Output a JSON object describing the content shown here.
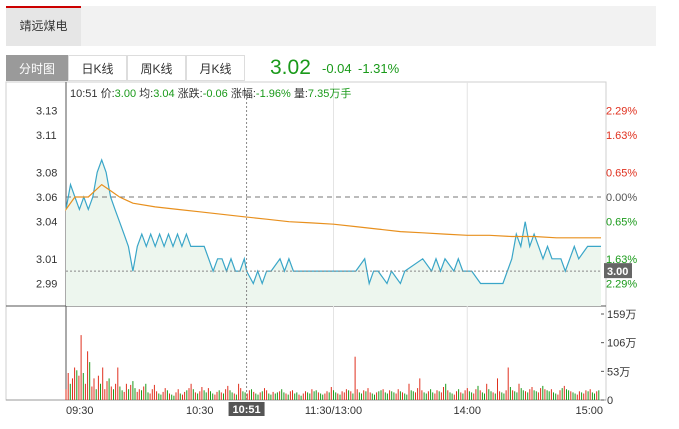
{
  "stock": {
    "name": "靖远煤电"
  },
  "toolbar": {
    "tabs": [
      {
        "label": "分时图",
        "active": true
      },
      {
        "label": "日K线",
        "active": false
      },
      {
        "label": "周K线",
        "active": false
      },
      {
        "label": "月K线",
        "active": false
      }
    ]
  },
  "quote": {
    "price": "3.02",
    "change": "-0.04",
    "change_pct": "-1.31%"
  },
  "info_bar": {
    "time": "10:51",
    "price_label": "价:",
    "price": "3.00",
    "avg_label": "均:",
    "avg": "3.04",
    "change_label": "涨跌:",
    "change": "-0.06",
    "amp_label": "涨幅:",
    "amp": "-1.96%",
    "vol_label": "量:",
    "vol": "7.35万手"
  },
  "cursor_price_tag": "3.00",
  "colors": {
    "up": "#e0301e",
    "down": "#1a9a1a",
    "price_line": "#3aa6c8",
    "avg_line": "#e8901e",
    "fill": "#edf6ee"
  },
  "chart_data": {
    "type": "line",
    "title": "",
    "previous_close": 3.06,
    "y_ticks": [
      "3.13",
      "3.11",
      "3.08",
      "3.06",
      "3.04",
      "3.01",
      "2.99"
    ],
    "y_tick_values": [
      3.13,
      3.11,
      3.08,
      3.06,
      3.04,
      3.01,
      2.99
    ],
    "pct_ticks": [
      "2.29%",
      "1.63%",
      "0.65%",
      "0.00%",
      "0.65%",
      "1.63%",
      "2.29%"
    ],
    "pct_colors": [
      "up",
      "up",
      "up",
      "neutral",
      "down",
      "down",
      "down"
    ],
    "x_ticks": [
      "09:30",
      "10:30",
      "11:30/13:00",
      "14:00",
      "15:00"
    ],
    "x_tick_minutes": [
      0,
      60,
      120,
      180,
      240
    ],
    "cursor": {
      "label": "10:51",
      "minute": 81,
      "price": 3.0
    },
    "series": [
      {
        "key": "price",
        "points": [
          [
            0,
            3.05
          ],
          [
            2,
            3.07
          ],
          [
            4,
            3.06
          ],
          [
            6,
            3.05
          ],
          [
            8,
            3.06
          ],
          [
            10,
            3.05
          ],
          [
            12,
            3.06
          ],
          [
            14,
            3.08
          ],
          [
            16,
            3.09
          ],
          [
            18,
            3.08
          ],
          [
            20,
            3.06
          ],
          [
            22,
            3.05
          ],
          [
            24,
            3.04
          ],
          [
            26,
            3.03
          ],
          [
            28,
            3.02
          ],
          [
            30,
            3.0
          ],
          [
            32,
            3.02
          ],
          [
            34,
            3.03
          ],
          [
            36,
            3.02
          ],
          [
            38,
            3.03
          ],
          [
            40,
            3.02
          ],
          [
            42,
            3.03
          ],
          [
            44,
            3.02
          ],
          [
            46,
            3.03
          ],
          [
            48,
            3.02
          ],
          [
            50,
            3.03
          ],
          [
            52,
            3.02
          ],
          [
            54,
            3.03
          ],
          [
            56,
            3.02
          ],
          [
            58,
            3.02
          ],
          [
            62,
            3.02
          ],
          [
            64,
            3.01
          ],
          [
            66,
            3.0
          ],
          [
            68,
            3.01
          ],
          [
            70,
            3.01
          ],
          [
            72,
            3.0
          ],
          [
            74,
            3.01
          ],
          [
            76,
            3.0
          ],
          [
            78,
            3.0
          ],
          [
            80,
            3.01
          ],
          [
            81,
            3.0
          ],
          [
            84,
            2.99
          ],
          [
            86,
            3.0
          ],
          [
            88,
            2.99
          ],
          [
            90,
            3.0
          ],
          [
            92,
            3.0
          ],
          [
            96,
            3.01
          ],
          [
            98,
            3.0
          ],
          [
            100,
            3.01
          ],
          [
            102,
            3.0
          ],
          [
            104,
            3.0
          ],
          [
            110,
            3.0
          ],
          [
            130,
            3.0
          ],
          [
            134,
            3.01
          ],
          [
            136,
            2.99
          ],
          [
            138,
            3.0
          ],
          [
            140,
            3.0
          ],
          [
            144,
            2.99
          ],
          [
            146,
            3.0
          ],
          [
            150,
            2.99
          ],
          [
            152,
            3.0
          ],
          [
            160,
            3.01
          ],
          [
            164,
            3.0
          ],
          [
            166,
            3.01
          ],
          [
            168,
            3.0
          ],
          [
            170,
            3.01
          ],
          [
            174,
            3.0
          ],
          [
            176,
            3.01
          ],
          [
            178,
            3.0
          ],
          [
            182,
            3.0
          ],
          [
            186,
            2.99
          ],
          [
            190,
            2.99
          ],
          [
            196,
            2.99
          ],
          [
            200,
            3.01
          ],
          [
            202,
            3.03
          ],
          [
            204,
            3.02
          ],
          [
            206,
            3.04
          ],
          [
            208,
            3.02
          ],
          [
            210,
            3.03
          ],
          [
            212,
            3.02
          ],
          [
            214,
            3.01
          ],
          [
            216,
            3.02
          ],
          [
            218,
            3.01
          ],
          [
            222,
            3.01
          ],
          [
            224,
            3.0
          ],
          [
            226,
            3.01
          ],
          [
            228,
            3.02
          ],
          [
            230,
            3.01
          ],
          [
            234,
            3.02
          ],
          [
            238,
            3.02
          ],
          [
            240,
            3.02
          ]
        ]
      },
      {
        "key": "avg",
        "points": [
          [
            0,
            3.05
          ],
          [
            4,
            3.06
          ],
          [
            10,
            3.06
          ],
          [
            16,
            3.07
          ],
          [
            20,
            3.065
          ],
          [
            24,
            3.06
          ],
          [
            30,
            3.055
          ],
          [
            40,
            3.052
          ],
          [
            50,
            3.05
          ],
          [
            60,
            3.048
          ],
          [
            70,
            3.046
          ],
          [
            80,
            3.044
          ],
          [
            90,
            3.042
          ],
          [
            100,
            3.04
          ],
          [
            110,
            3.039
          ],
          [
            120,
            3.038
          ],
          [
            130,
            3.036
          ],
          [
            140,
            3.034
          ],
          [
            150,
            3.032
          ],
          [
            160,
            3.031
          ],
          [
            170,
            3.03
          ],
          [
            180,
            3.029
          ],
          [
            190,
            3.029
          ],
          [
            200,
            3.028
          ],
          [
            210,
            3.028
          ],
          [
            220,
            3.027
          ],
          [
            230,
            3.027
          ],
          [
            240,
            3.027
          ]
        ]
      }
    ],
    "volume": {
      "unit": "万",
      "ticks": [
        "159万",
        "106万",
        "53万",
        "0"
      ],
      "tick_values": [
        159,
        106,
        53,
        0
      ],
      "values": [
        20,
        50,
        30,
        40,
        60,
        55,
        45,
        120,
        50,
        30,
        90,
        70,
        25,
        40,
        20,
        45,
        30,
        60,
        20,
        35,
        40,
        25,
        20,
        30,
        60,
        25,
        18,
        15,
        30,
        20,
        28,
        35,
        22,
        15,
        20,
        18,
        25,
        30,
        14,
        12,
        20,
        28,
        16,
        12,
        10,
        15,
        22,
        18,
        12,
        10,
        8,
        14,
        20,
        12,
        10,
        15,
        18,
        22,
        30,
        20,
        14,
        12,
        16,
        24,
        18,
        14,
        22,
        16,
        12,
        10,
        15,
        18,
        14,
        12,
        20,
        26,
        18,
        14,
        12,
        10,
        30,
        22,
        16,
        14,
        12,
        18,
        20,
        15,
        12,
        10,
        14,
        16,
        22,
        18,
        12,
        10,
        15,
        12,
        14,
        16,
        20,
        14,
        12,
        10,
        16,
        18,
        12,
        14,
        10,
        8,
        12,
        16,
        14,
        12,
        20,
        16,
        18,
        14,
        12,
        10,
        12,
        16,
        14,
        24,
        18,
        14,
        12,
        10,
        16,
        14,
        20,
        18,
        16,
        12,
        80,
        20,
        14,
        12,
        18,
        16,
        22,
        14,
        12,
        10,
        14,
        16,
        18,
        20,
        14,
        12,
        18,
        16,
        14,
        12,
        20,
        16,
        14,
        12,
        10,
        30,
        18,
        16,
        14,
        22,
        40,
        18,
        14,
        12,
        16,
        20,
        14,
        12,
        18,
        16,
        14,
        24,
        30,
        18,
        14,
        12,
        10,
        16,
        20,
        14,
        12,
        18,
        22,
        16,
        14,
        12,
        20,
        26,
        18,
        14,
        12,
        30,
        20,
        16,
        14,
        12,
        40,
        16,
        14,
        12,
        18,
        60,
        24,
        18,
        16,
        14,
        30,
        22,
        18,
        16,
        14,
        20,
        24,
        18,
        16,
        14,
        22,
        26,
        20,
        18,
        16,
        20,
        14,
        12,
        10,
        18,
        22,
        26,
        20,
        18,
        16,
        14,
        12,
        10,
        16,
        14,
        12,
        18,
        16,
        20,
        14,
        12,
        16,
        18
      ]
    }
  }
}
